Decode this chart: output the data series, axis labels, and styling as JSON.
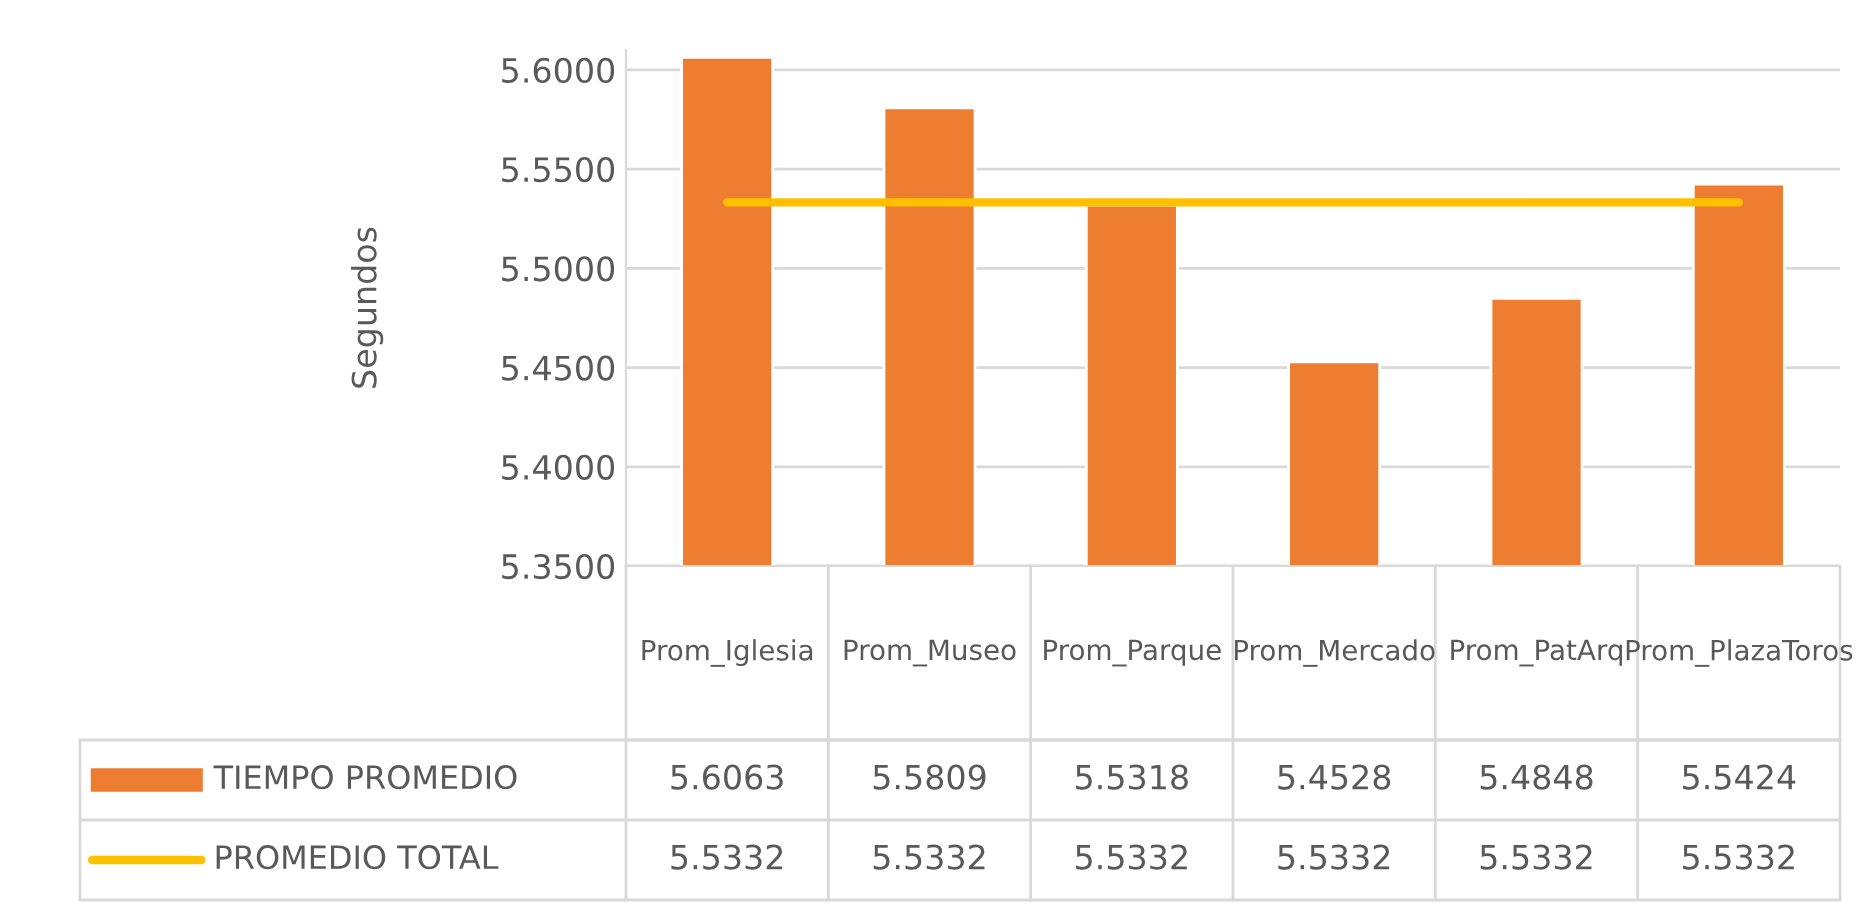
{
  "chart_data": {
    "type": "bar",
    "ylabel": "Segundos",
    "categories": [
      "Prom_Iglesia",
      "Prom_Museo",
      "Prom_Parque",
      "Prom_Mercado",
      "Prom_PatArq",
      "Prom_PlazaToros"
    ],
    "series": [
      {
        "name": "TIEMPO PROMEDIO",
        "color": "#ed7d31",
        "values": [
          5.6063,
          5.5809,
          5.5318,
          5.4528,
          5.4848,
          5.5424
        ]
      },
      {
        "name": "PROMEDIO TOTAL",
        "type": "line",
        "color": "#ffc000",
        "values": [
          5.5332,
          5.5332,
          5.5332,
          5.5332,
          5.5332,
          5.5332
        ]
      }
    ],
    "ylim": [
      5.35,
      5.61
    ],
    "yticks": [
      {
        "value": 5.35,
        "label": "5.3500"
      },
      {
        "value": 5.4,
        "label": "5.4000"
      },
      {
        "value": 5.45,
        "label": "5.4500"
      },
      {
        "value": 5.5,
        "label": "5.5000"
      },
      {
        "value": 5.55,
        "label": "5.5500"
      },
      {
        "value": 5.6,
        "label": "5.6000"
      }
    ],
    "grid": "y",
    "data_labels": true,
    "legend": "bottom left"
  }
}
